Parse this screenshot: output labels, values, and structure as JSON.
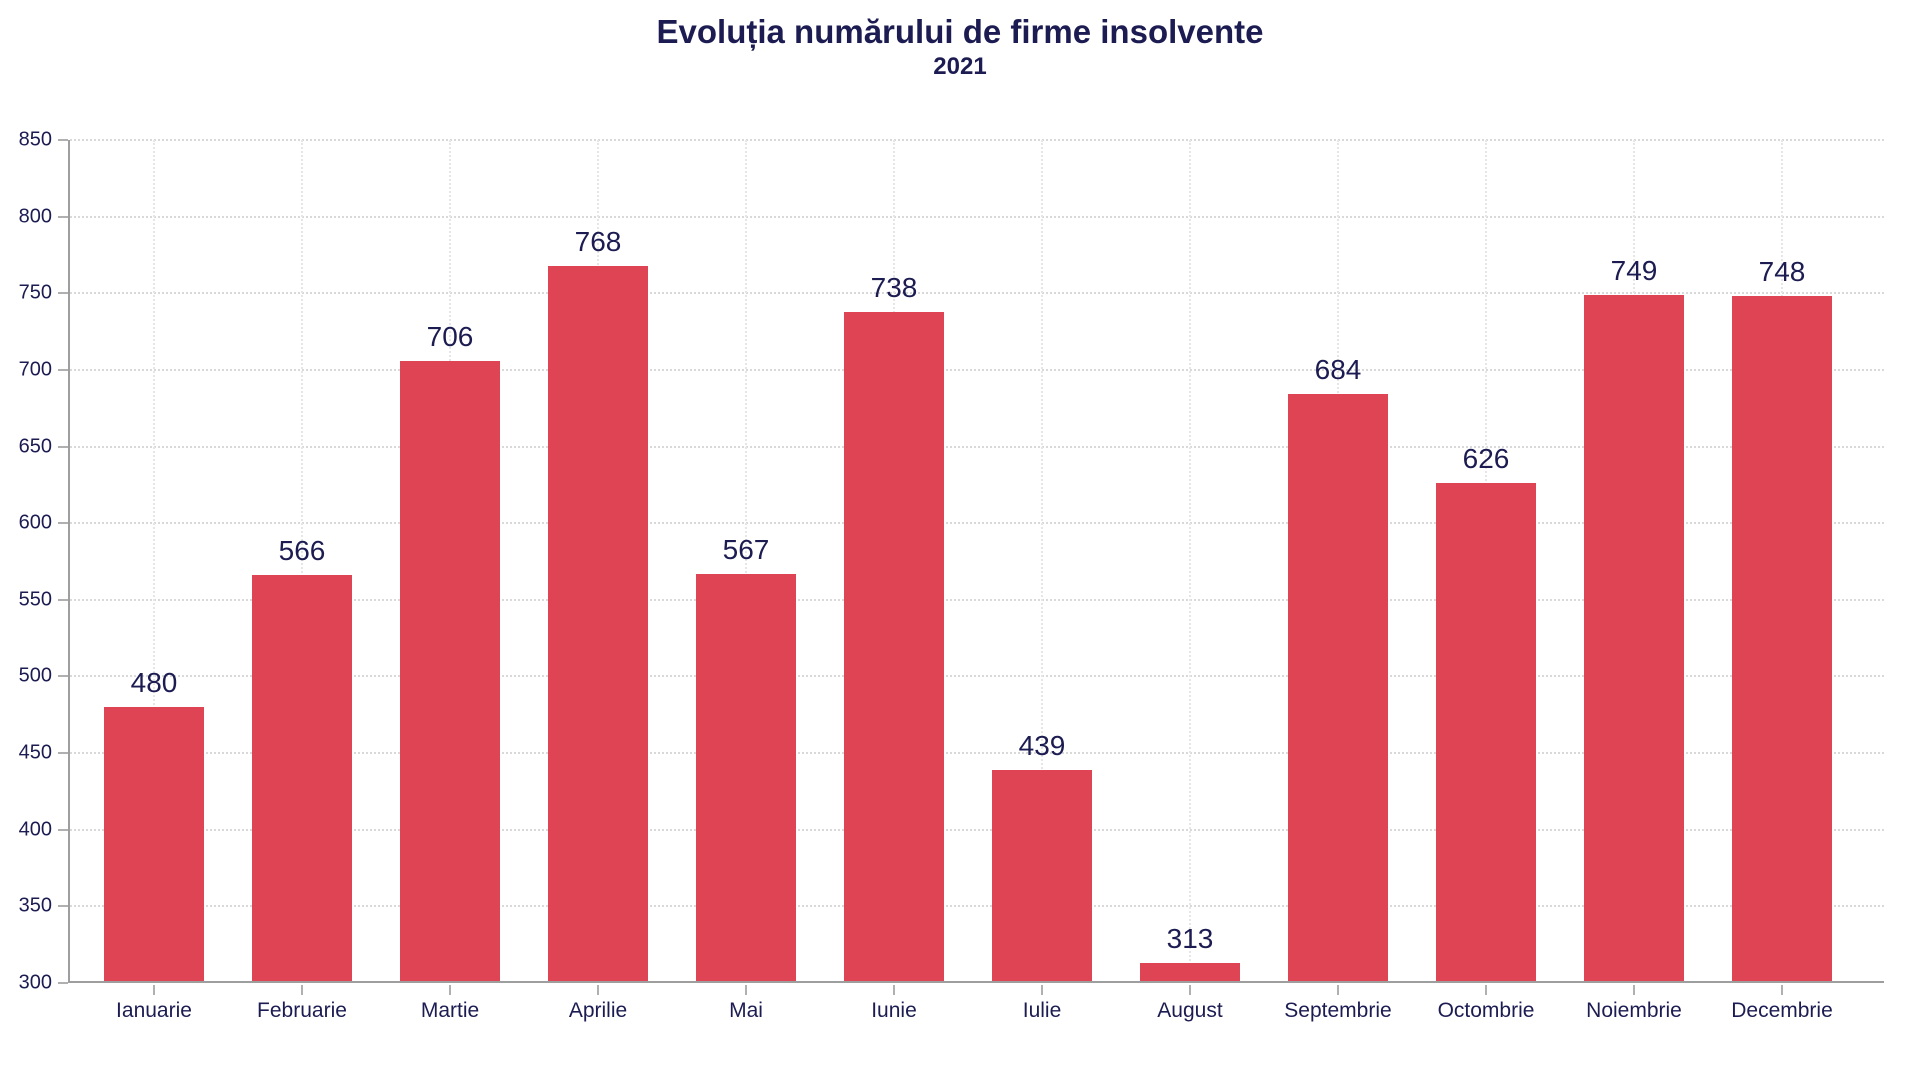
{
  "chart_data": {
    "type": "bar",
    "title": "Evoluția numărului de firme insolvente",
    "subtitle": "2021",
    "categories": [
      "Ianuarie",
      "Februarie",
      "Martie",
      "Aprilie",
      "Mai",
      "Iunie",
      "Iulie",
      "August",
      "Septembrie",
      "Octombrie",
      "Noiembrie",
      "Decembrie"
    ],
    "values": [
      480,
      566,
      706,
      768,
      567,
      738,
      439,
      313,
      684,
      626,
      749,
      748
    ],
    "xlabel": "",
    "ylabel": "",
    "ylim": [
      300,
      850
    ],
    "ytick_step": 50,
    "ytick_labels": [
      "300",
      "350",
      "400",
      "450",
      "500",
      "550",
      "600",
      "650",
      "700",
      "750",
      "800",
      "850"
    ],
    "grid": "dotted horizontal and vertical gridlines",
    "legend_position": "none",
    "colors": {
      "bar": "#de4454",
      "text": "#1c1c52",
      "grid_horizontal": "#d9d9d9",
      "grid_vertical": "#e6e6e6",
      "axis": "#9e9e9e"
    }
  }
}
